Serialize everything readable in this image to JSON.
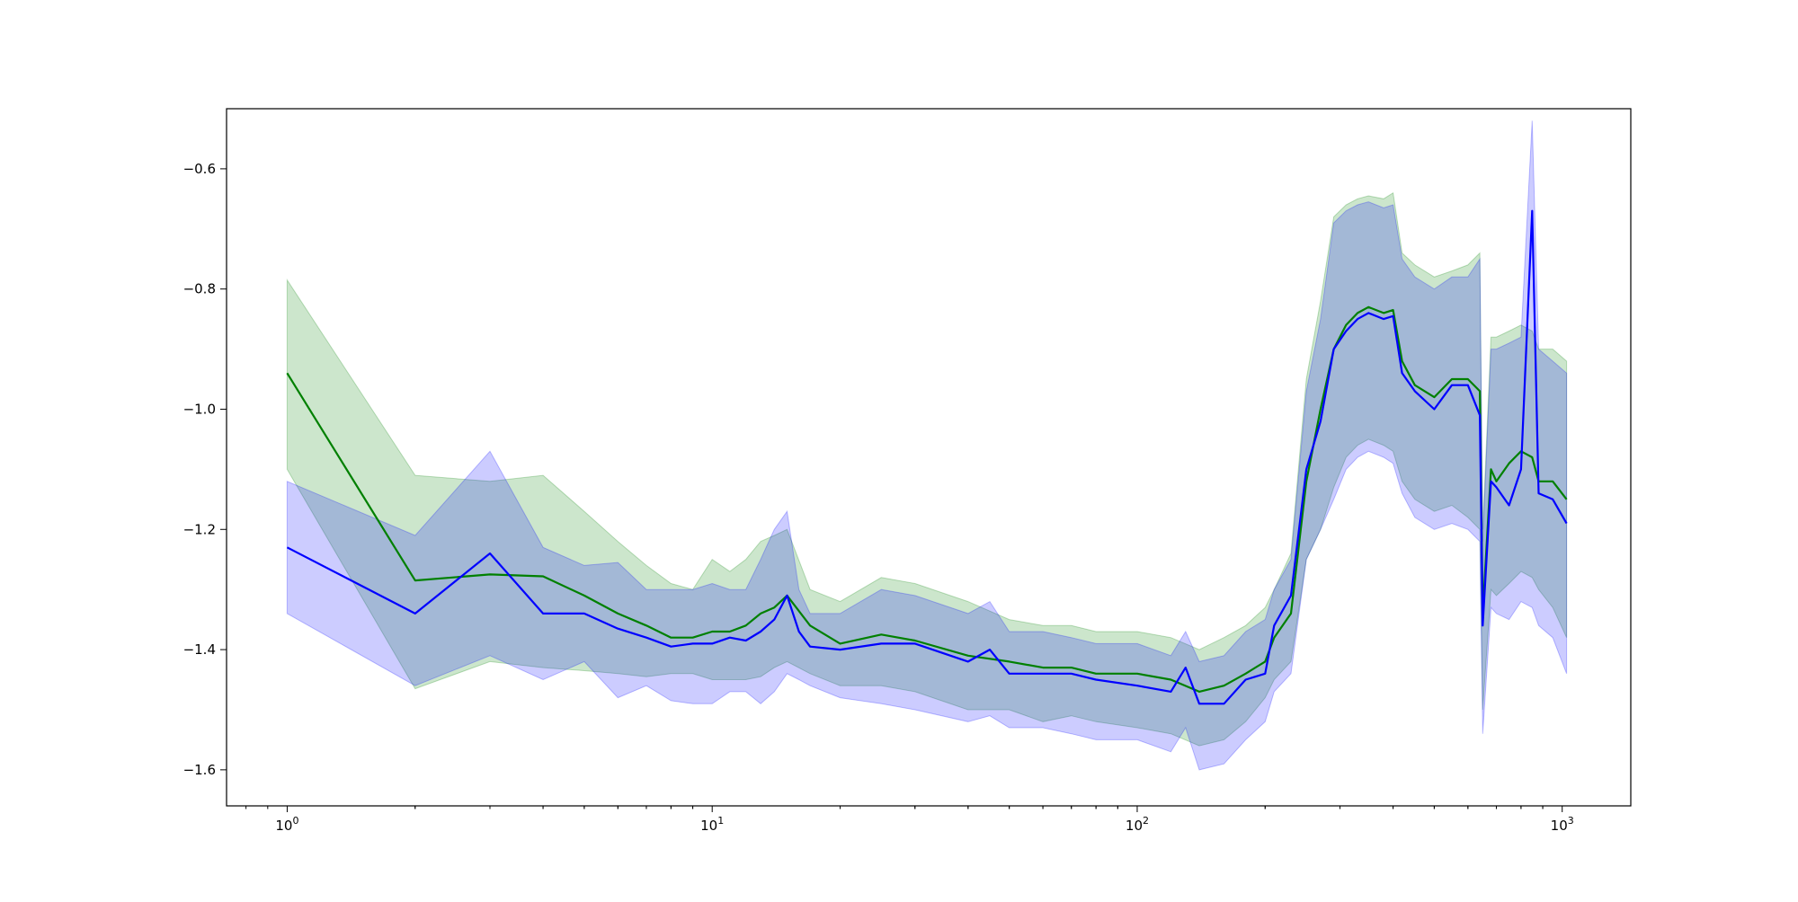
{
  "chart_data": {
    "type": "line",
    "title": "",
    "xlabel": "",
    "ylabel": "",
    "xscale": "log",
    "xlim": [
      0.72,
      1450
    ],
    "ylim": [
      -1.66,
      -0.5
    ],
    "grid": false,
    "legend": "none",
    "x_ticks": [
      {
        "value": 1,
        "base": "10",
        "exp": "0"
      },
      {
        "value": 10,
        "base": "10",
        "exp": "1"
      },
      {
        "value": 100,
        "base": "10",
        "exp": "2"
      },
      {
        "value": 1000,
        "base": "10",
        "exp": "3"
      }
    ],
    "y_ticks": [
      {
        "value": -1.6,
        "label": "−1.6"
      },
      {
        "value": -1.4,
        "label": "−1.4"
      },
      {
        "value": -1.2,
        "label": "−1.2"
      },
      {
        "value": -1.0,
        "label": "−1.0"
      },
      {
        "value": -0.8,
        "label": "−0.8"
      },
      {
        "value": -0.6,
        "label": "−0.6"
      }
    ],
    "series": [
      {
        "color": "#008000",
        "band_color": "#008000",
        "x": [
          1,
          2,
          3,
          4,
          5,
          6,
          7,
          8,
          9,
          10,
          11,
          12,
          13,
          14,
          15,
          17,
          20,
          25,
          30,
          40,
          50,
          60,
          70,
          80,
          100,
          120,
          140,
          160,
          180,
          200,
          210,
          230,
          250,
          270,
          290,
          310,
          330,
          350,
          380,
          400,
          420,
          450,
          500,
          550,
          600,
          640,
          650,
          680,
          700,
          750,
          800,
          850,
          880,
          950,
          1024
        ],
        "y": [
          -0.94,
          -1.285,
          -1.275,
          -1.278,
          -1.31,
          -1.34,
          -1.36,
          -1.38,
          -1.38,
          -1.37,
          -1.37,
          -1.36,
          -1.34,
          -1.33,
          -1.31,
          -1.36,
          -1.39,
          -1.375,
          -1.385,
          -1.41,
          -1.42,
          -1.43,
          -1.43,
          -1.44,
          -1.44,
          -1.45,
          -1.47,
          -1.46,
          -1.44,
          -1.42,
          -1.38,
          -1.34,
          -1.12,
          -1.0,
          -0.9,
          -0.86,
          -0.84,
          -0.83,
          -0.84,
          -0.835,
          -0.92,
          -0.96,
          -0.98,
          -0.95,
          -0.95,
          -0.97,
          -1.34,
          -1.1,
          -1.12,
          -1.09,
          -1.07,
          -1.08,
          -1.12,
          -1.12,
          -1.15
        ],
        "lower": [
          -1.1,
          -1.465,
          -1.42,
          -1.43,
          -1.435,
          -1.44,
          -1.445,
          -1.44,
          -1.44,
          -1.45,
          -1.45,
          -1.45,
          -1.445,
          -1.43,
          -1.42,
          -1.44,
          -1.46,
          -1.46,
          -1.47,
          -1.5,
          -1.5,
          -1.52,
          -1.51,
          -1.52,
          -1.53,
          -1.54,
          -1.56,
          -1.55,
          -1.52,
          -1.48,
          -1.45,
          -1.42,
          -1.25,
          -1.2,
          -1.13,
          -1.08,
          -1.06,
          -1.05,
          -1.06,
          -1.07,
          -1.12,
          -1.15,
          -1.17,
          -1.16,
          -1.18,
          -1.2,
          -1.5,
          -1.3,
          -1.31,
          -1.29,
          -1.27,
          -1.28,
          -1.3,
          -1.33,
          -1.38
        ],
        "upper": [
          -0.785,
          -1.11,
          -1.12,
          -1.11,
          -1.17,
          -1.22,
          -1.26,
          -1.29,
          -1.3,
          -1.25,
          -1.27,
          -1.25,
          -1.22,
          -1.21,
          -1.2,
          -1.3,
          -1.32,
          -1.28,
          -1.29,
          -1.32,
          -1.35,
          -1.36,
          -1.36,
          -1.37,
          -1.37,
          -1.38,
          -1.4,
          -1.38,
          -1.36,
          -1.33,
          -1.3,
          -1.24,
          -0.95,
          -0.82,
          -0.68,
          -0.66,
          -0.65,
          -0.645,
          -0.65,
          -0.64,
          -0.74,
          -0.76,
          -0.78,
          -0.77,
          -0.76,
          -0.74,
          -1.2,
          -0.88,
          -0.88,
          -0.87,
          -0.86,
          -0.87,
          -0.9,
          -0.9,
          -0.92
        ]
      },
      {
        "color": "#0000ff",
        "band_color": "#0000ff",
        "x": [
          1,
          2,
          3,
          4,
          5,
          6,
          7,
          8,
          9,
          10,
          11,
          12,
          13,
          14,
          15,
          16,
          17,
          20,
          25,
          30,
          40,
          45,
          50,
          60,
          70,
          80,
          100,
          120,
          130,
          140,
          160,
          180,
          200,
          210,
          230,
          250,
          270,
          290,
          310,
          330,
          350,
          380,
          400,
          420,
          450,
          500,
          550,
          600,
          640,
          650,
          680,
          700,
          750,
          800,
          850,
          880,
          950,
          1024
        ],
        "y": [
          -1.23,
          -1.34,
          -1.24,
          -1.34,
          -1.34,
          -1.365,
          -1.38,
          -1.395,
          -1.39,
          -1.39,
          -1.38,
          -1.385,
          -1.37,
          -1.35,
          -1.31,
          -1.37,
          -1.395,
          -1.4,
          -1.39,
          -1.39,
          -1.42,
          -1.4,
          -1.44,
          -1.44,
          -1.44,
          -1.45,
          -1.46,
          -1.47,
          -1.43,
          -1.49,
          -1.49,
          -1.45,
          -1.44,
          -1.36,
          -1.31,
          -1.1,
          -1.02,
          -0.9,
          -0.87,
          -0.85,
          -0.84,
          -0.85,
          -0.845,
          -0.94,
          -0.97,
          -1.0,
          -0.96,
          -0.96,
          -1.01,
          -1.36,
          -1.12,
          -1.13,
          -1.16,
          -1.1,
          -0.67,
          -1.14,
          -1.15,
          -1.19
        ],
        "lower": [
          -1.34,
          -1.46,
          -1.41,
          -1.45,
          -1.42,
          -1.48,
          -1.46,
          -1.485,
          -1.49,
          -1.49,
          -1.47,
          -1.47,
          -1.49,
          -1.47,
          -1.44,
          -1.45,
          -1.46,
          -1.48,
          -1.49,
          -1.5,
          -1.52,
          -1.51,
          -1.53,
          -1.53,
          -1.54,
          -1.55,
          -1.55,
          -1.57,
          -1.53,
          -1.6,
          -1.59,
          -1.55,
          -1.52,
          -1.47,
          -1.44,
          -1.25,
          -1.2,
          -1.15,
          -1.1,
          -1.08,
          -1.07,
          -1.08,
          -1.09,
          -1.14,
          -1.18,
          -1.2,
          -1.19,
          -1.2,
          -1.22,
          -1.54,
          -1.33,
          -1.34,
          -1.35,
          -1.32,
          -1.33,
          -1.36,
          -1.38,
          -1.44
        ],
        "upper": [
          -1.12,
          -1.21,
          -1.07,
          -1.23,
          -1.26,
          -1.255,
          -1.3,
          -1.3,
          -1.3,
          -1.29,
          -1.3,
          -1.3,
          -1.25,
          -1.2,
          -1.17,
          -1.3,
          -1.34,
          -1.34,
          -1.3,
          -1.31,
          -1.34,
          -1.32,
          -1.37,
          -1.37,
          -1.38,
          -1.39,
          -1.39,
          -1.41,
          -1.37,
          -1.42,
          -1.41,
          -1.37,
          -1.35,
          -1.3,
          -1.25,
          -0.97,
          -0.85,
          -0.69,
          -0.67,
          -0.66,
          -0.655,
          -0.665,
          -0.66,
          -0.75,
          -0.78,
          -0.8,
          -0.78,
          -0.78,
          -0.75,
          -1.22,
          -0.9,
          -0.9,
          -0.89,
          -0.88,
          -0.52,
          -0.9,
          -0.92,
          -0.94
        ]
      }
    ]
  }
}
